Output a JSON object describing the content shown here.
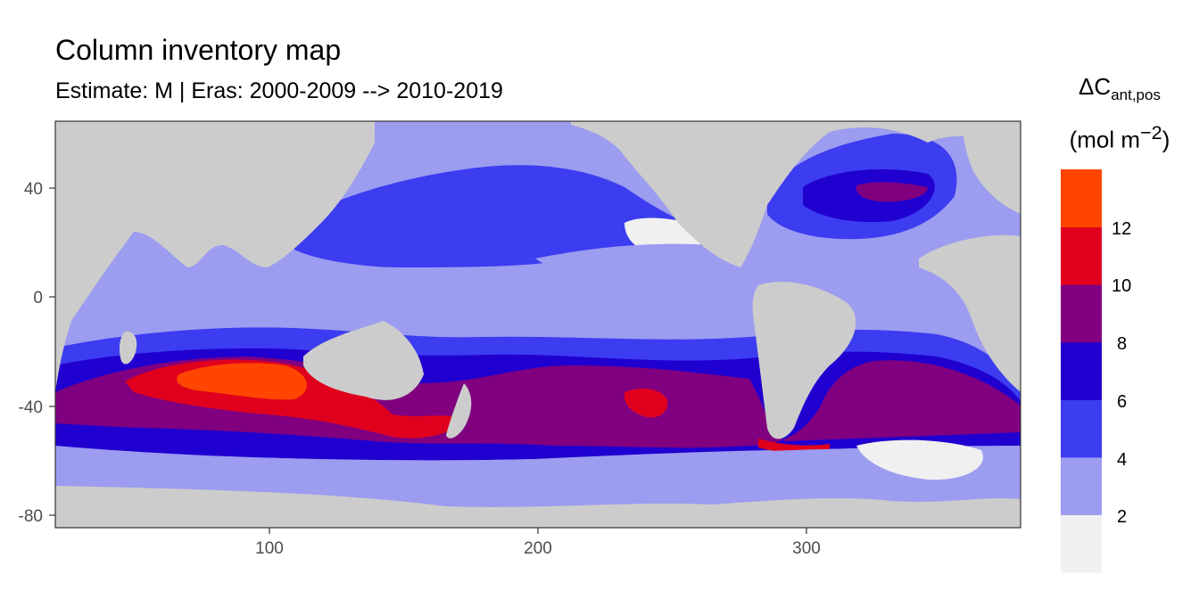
{
  "title": "Column inventory map",
  "subtitle": "Estimate: M  | Eras: 2000-2009 --> 2010-2019",
  "legend": {
    "title_main": "ΔC",
    "title_sub": "ant,pos",
    "unit_pre": "(mol m",
    "unit_sup": "−2",
    "unit_post": ")",
    "breaks": [
      "2",
      "4",
      "6",
      "8",
      "10",
      "12"
    ],
    "bin_colors": [
      "#f0f0f0",
      "#9c9cf0",
      "#3c3cf0",
      "#2000d0",
      "#800080",
      "#e0001e",
      "#ff4500"
    ]
  },
  "colors": {
    "land": "#cccccc",
    "frame": "#333333"
  },
  "chart_data": {
    "type": "heatmap",
    "title": "Column inventory map",
    "subtitle": "Estimate: M  | Eras: 2000-2009 --> 2010-2019",
    "x_ticks": [
      "100",
      "200",
      "300"
    ],
    "y_ticks": [
      "40",
      "0",
      "-40",
      "-80"
    ],
    "xlim": [
      20,
      380
    ],
    "ylim": [
      -85,
      64
    ],
    "regions": [
      {
        "value_bin": "4-6",
        "lon": [
          175,
          360
        ],
        "lat": [
          -70,
          -62
        ]
      },
      {
        "value_bin": "2-4",
        "lon": [
          20,
          380
        ],
        "lat": [
          -62,
          -40
        ]
      },
      {
        "value_bin": "8-10",
        "lon": [
          20,
          180
        ],
        "lat": [
          -55,
          -30
        ]
      },
      {
        "value_bin": "12-14",
        "lon": [
          60,
          105
        ],
        "lat": [
          -38,
          -31
        ]
      },
      {
        "value_bin": "10-12",
        "lon": [
          230,
          255
        ],
        "lat": [
          -48,
          -38
        ]
      },
      {
        "value_bin": "8-10",
        "lon": [
          330,
          345
        ],
        "lat": [
          40,
          45
        ]
      }
    ]
  }
}
